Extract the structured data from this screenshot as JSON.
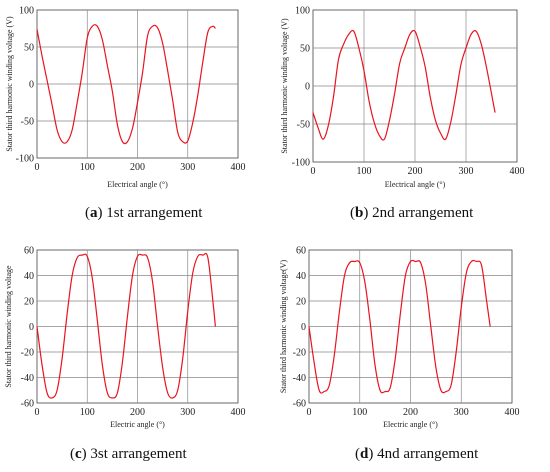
{
  "chart_data": [
    {
      "type": "line",
      "panel": "a",
      "caption_letter": "a",
      "caption_text": "1st arrangement",
      "xlabel": "Electrical angle (°)",
      "ylabel": "Stator third harmonic winding voltage (V)",
      "xlim": [
        0,
        400
      ],
      "ylim": [
        -100,
        100
      ],
      "xticks": [
        "0",
        "100",
        "200",
        "300",
        "400"
      ],
      "yticks": [
        "-100",
        "-50",
        "0",
        "50",
        "100"
      ],
      "grid": true,
      "color": "#e8141e",
      "series": [
        {
          "x": [
            0,
            10,
            20,
            30,
            40,
            50,
            60,
            70,
            80,
            90,
            100,
            110,
            120,
            130,
            140,
            150,
            160,
            170,
            180,
            190,
            200,
            210,
            220,
            230,
            240,
            250,
            260,
            270,
            280,
            290,
            300,
            310,
            320,
            330,
            340,
            350,
            355
          ],
          "y": [
            74,
            38,
            5,
            -28,
            -62,
            -78,
            -78,
            -62,
            -25,
            15,
            62,
            78,
            78,
            60,
            25,
            -10,
            -55,
            -78,
            -78,
            -60,
            -25,
            15,
            65,
            78,
            76,
            55,
            18,
            -22,
            -65,
            -78,
            -77,
            -52,
            -15,
            30,
            70,
            78,
            75
          ]
        }
      ]
    },
    {
      "type": "line",
      "panel": "b",
      "caption_letter": "b",
      "caption_text": "2nd arrangement",
      "xlabel": "Electrical angle (°)",
      "ylabel": "Stator third harmonic winding voltage (V)",
      "xlim": [
        0,
        400
      ],
      "ylim": [
        -100,
        100
      ],
      "xticks": [
        "0",
        "100",
        "200",
        "300",
        "400"
      ],
      "yticks": [
        "-100",
        "-50",
        "0",
        "50",
        "100"
      ],
      "grid": true,
      "color": "#e8141e",
      "series": [
        {
          "x": [
            0,
            10,
            20,
            30,
            40,
            50,
            60,
            70,
            80,
            90,
            100,
            110,
            120,
            130,
            140,
            150,
            160,
            170,
            180,
            190,
            200,
            210,
            220,
            230,
            240,
            250,
            260,
            270,
            280,
            290,
            300,
            310,
            320,
            330,
            340,
            350,
            357
          ],
          "y": [
            -35,
            -55,
            -70,
            -52,
            -15,
            35,
            55,
            68,
            72,
            50,
            20,
            -20,
            -48,
            -65,
            -70,
            -45,
            -10,
            30,
            50,
            68,
            72,
            52,
            25,
            -15,
            -45,
            -62,
            -70,
            -48,
            -12,
            28,
            50,
            68,
            72,
            55,
            25,
            -10,
            -35
          ]
        }
      ]
    },
    {
      "type": "line",
      "panel": "c",
      "caption_letter": "c",
      "caption_text": "3st arrangement",
      "xlabel": "Electric angle (°)",
      "ylabel": "Stator third harmonic winding voltage",
      "xlim": [
        0,
        400
      ],
      "ylim": [
        -60,
        60
      ],
      "xticks": [
        "0",
        "100",
        "200",
        "300",
        "400"
      ],
      "yticks": [
        "-60",
        "-40",
        "-20",
        "0",
        "20",
        "40",
        "60"
      ],
      "grid": true,
      "color": "#e8141e",
      "series": [
        {
          "x": [
            0,
            10,
            20,
            30,
            40,
            50,
            60,
            70,
            80,
            90,
            100,
            110,
            120,
            130,
            140,
            150,
            160,
            170,
            180,
            190,
            200,
            210,
            220,
            230,
            240,
            250,
            260,
            270,
            280,
            290,
            300,
            310,
            320,
            330,
            340,
            350,
            355
          ],
          "y": [
            0,
            -30,
            -52,
            -56,
            -50,
            -25,
            10,
            40,
            54,
            56,
            55,
            38,
            5,
            -30,
            -52,
            -56,
            -52,
            -28,
            8,
            40,
            55,
            56,
            54,
            35,
            0,
            -32,
            -52,
            -56,
            -50,
            -25,
            12,
            42,
            55,
            56,
            54,
            20,
            0
          ]
        }
      ]
    },
    {
      "type": "line",
      "panel": "d",
      "caption_letter": "d",
      "caption_text": "4nd arrangement",
      "xlabel": "Electric angle (°)",
      "ylabel": "Stator third harmonic winding voltage(V)",
      "xlim": [
        0,
        400
      ],
      "ylim": [
        -60,
        60
      ],
      "xticks": [
        "0",
        "100",
        "200",
        "300",
        "400"
      ],
      "yticks": [
        "-60",
        "-40",
        "-20",
        "0",
        "20",
        "40",
        "60"
      ],
      "grid": true,
      "color": "#e8141e",
      "series": [
        {
          "x": [
            0,
            10,
            20,
            30,
            40,
            50,
            60,
            70,
            80,
            90,
            100,
            110,
            120,
            130,
            140,
            150,
            160,
            170,
            180,
            190,
            200,
            210,
            220,
            230,
            240,
            250,
            260,
            270,
            280,
            290,
            300,
            310,
            320,
            330,
            340,
            350,
            357
          ],
          "y": [
            0,
            -28,
            -50,
            -51,
            -46,
            -22,
            12,
            40,
            50,
            51,
            50,
            35,
            5,
            -30,
            -50,
            -51,
            -48,
            -25,
            10,
            40,
            51,
            51,
            50,
            33,
            0,
            -32,
            -50,
            -51,
            -46,
            -20,
            15,
            42,
            51,
            51,
            48,
            20,
            0
          ]
        }
      ]
    }
  ]
}
